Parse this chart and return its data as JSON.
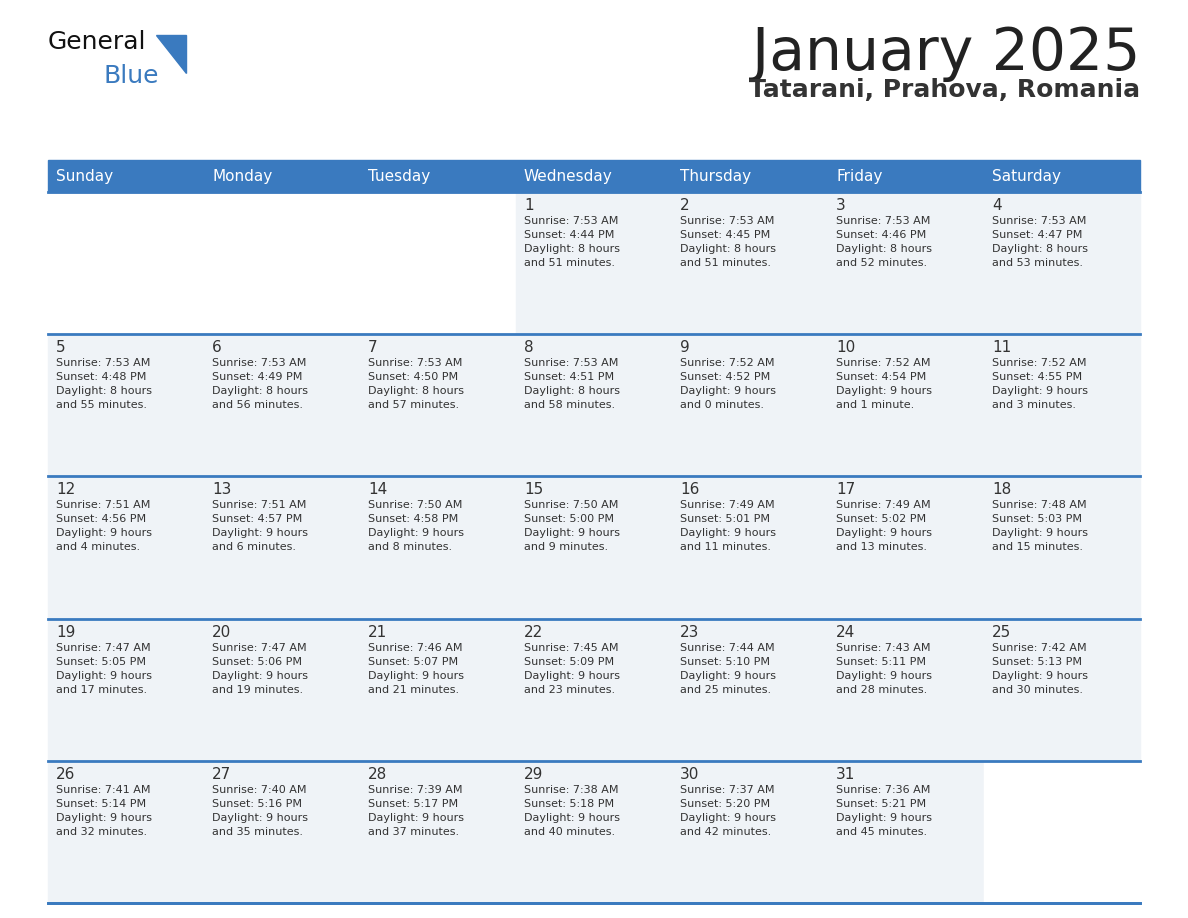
{
  "title": "January 2025",
  "subtitle": "Tatarani, Prahova, Romania",
  "header_color": "#3a7abf",
  "header_text_color": "#ffffff",
  "title_color": "#222222",
  "subtitle_color": "#333333",
  "cell_bg_color": "#eff3f7",
  "cell_bg_empty": "#ffffff",
  "separator_color": "#3a7abf",
  "text_color": "#333333",
  "logo_black": "#111111",
  "logo_blue": "#3a7abf",
  "days_of_week": [
    "Sunday",
    "Monday",
    "Tuesday",
    "Wednesday",
    "Thursday",
    "Friday",
    "Saturday"
  ],
  "calendar": [
    [
      {
        "day": "",
        "info": ""
      },
      {
        "day": "",
        "info": ""
      },
      {
        "day": "",
        "info": ""
      },
      {
        "day": "1",
        "info": "Sunrise: 7:53 AM\nSunset: 4:44 PM\nDaylight: 8 hours\nand 51 minutes."
      },
      {
        "day": "2",
        "info": "Sunrise: 7:53 AM\nSunset: 4:45 PM\nDaylight: 8 hours\nand 51 minutes."
      },
      {
        "day": "3",
        "info": "Sunrise: 7:53 AM\nSunset: 4:46 PM\nDaylight: 8 hours\nand 52 minutes."
      },
      {
        "day": "4",
        "info": "Sunrise: 7:53 AM\nSunset: 4:47 PM\nDaylight: 8 hours\nand 53 minutes."
      }
    ],
    [
      {
        "day": "5",
        "info": "Sunrise: 7:53 AM\nSunset: 4:48 PM\nDaylight: 8 hours\nand 55 minutes."
      },
      {
        "day": "6",
        "info": "Sunrise: 7:53 AM\nSunset: 4:49 PM\nDaylight: 8 hours\nand 56 minutes."
      },
      {
        "day": "7",
        "info": "Sunrise: 7:53 AM\nSunset: 4:50 PM\nDaylight: 8 hours\nand 57 minutes."
      },
      {
        "day": "8",
        "info": "Sunrise: 7:53 AM\nSunset: 4:51 PM\nDaylight: 8 hours\nand 58 minutes."
      },
      {
        "day": "9",
        "info": "Sunrise: 7:52 AM\nSunset: 4:52 PM\nDaylight: 9 hours\nand 0 minutes."
      },
      {
        "day": "10",
        "info": "Sunrise: 7:52 AM\nSunset: 4:54 PM\nDaylight: 9 hours\nand 1 minute."
      },
      {
        "day": "11",
        "info": "Sunrise: 7:52 AM\nSunset: 4:55 PM\nDaylight: 9 hours\nand 3 minutes."
      }
    ],
    [
      {
        "day": "12",
        "info": "Sunrise: 7:51 AM\nSunset: 4:56 PM\nDaylight: 9 hours\nand 4 minutes."
      },
      {
        "day": "13",
        "info": "Sunrise: 7:51 AM\nSunset: 4:57 PM\nDaylight: 9 hours\nand 6 minutes."
      },
      {
        "day": "14",
        "info": "Sunrise: 7:50 AM\nSunset: 4:58 PM\nDaylight: 9 hours\nand 8 minutes."
      },
      {
        "day": "15",
        "info": "Sunrise: 7:50 AM\nSunset: 5:00 PM\nDaylight: 9 hours\nand 9 minutes."
      },
      {
        "day": "16",
        "info": "Sunrise: 7:49 AM\nSunset: 5:01 PM\nDaylight: 9 hours\nand 11 minutes."
      },
      {
        "day": "17",
        "info": "Sunrise: 7:49 AM\nSunset: 5:02 PM\nDaylight: 9 hours\nand 13 minutes."
      },
      {
        "day": "18",
        "info": "Sunrise: 7:48 AM\nSunset: 5:03 PM\nDaylight: 9 hours\nand 15 minutes."
      }
    ],
    [
      {
        "day": "19",
        "info": "Sunrise: 7:47 AM\nSunset: 5:05 PM\nDaylight: 9 hours\nand 17 minutes."
      },
      {
        "day": "20",
        "info": "Sunrise: 7:47 AM\nSunset: 5:06 PM\nDaylight: 9 hours\nand 19 minutes."
      },
      {
        "day": "21",
        "info": "Sunrise: 7:46 AM\nSunset: 5:07 PM\nDaylight: 9 hours\nand 21 minutes."
      },
      {
        "day": "22",
        "info": "Sunrise: 7:45 AM\nSunset: 5:09 PM\nDaylight: 9 hours\nand 23 minutes."
      },
      {
        "day": "23",
        "info": "Sunrise: 7:44 AM\nSunset: 5:10 PM\nDaylight: 9 hours\nand 25 minutes."
      },
      {
        "day": "24",
        "info": "Sunrise: 7:43 AM\nSunset: 5:11 PM\nDaylight: 9 hours\nand 28 minutes."
      },
      {
        "day": "25",
        "info": "Sunrise: 7:42 AM\nSunset: 5:13 PM\nDaylight: 9 hours\nand 30 minutes."
      }
    ],
    [
      {
        "day": "26",
        "info": "Sunrise: 7:41 AM\nSunset: 5:14 PM\nDaylight: 9 hours\nand 32 minutes."
      },
      {
        "day": "27",
        "info": "Sunrise: 7:40 AM\nSunset: 5:16 PM\nDaylight: 9 hours\nand 35 minutes."
      },
      {
        "day": "28",
        "info": "Sunrise: 7:39 AM\nSunset: 5:17 PM\nDaylight: 9 hours\nand 37 minutes."
      },
      {
        "day": "29",
        "info": "Sunrise: 7:38 AM\nSunset: 5:18 PM\nDaylight: 9 hours\nand 40 minutes."
      },
      {
        "day": "30",
        "info": "Sunrise: 7:37 AM\nSunset: 5:20 PM\nDaylight: 9 hours\nand 42 minutes."
      },
      {
        "day": "31",
        "info": "Sunrise: 7:36 AM\nSunset: 5:21 PM\nDaylight: 9 hours\nand 45 minutes."
      },
      {
        "day": "",
        "info": ""
      }
    ]
  ]
}
